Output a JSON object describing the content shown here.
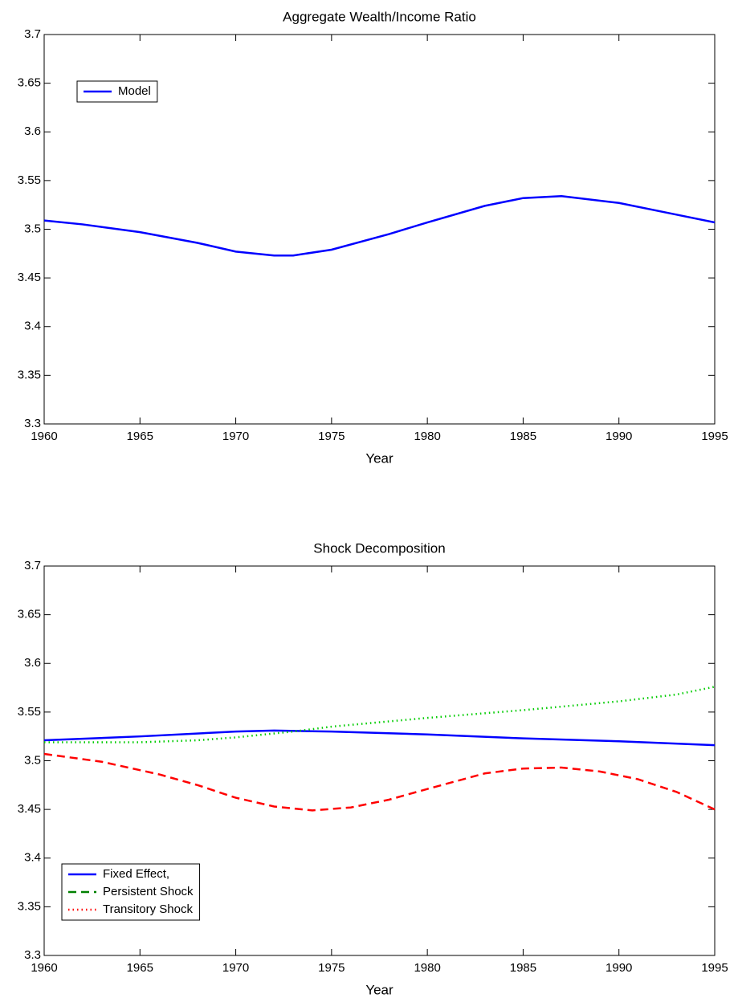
{
  "chart_data": [
    {
      "type": "line",
      "title": "Aggregate Wealth/Income Ratio",
      "x_label": "Year",
      "xlim": [
        1960,
        1995
      ],
      "xticks": [
        1960,
        1965,
        1970,
        1975,
        1980,
        1985,
        1990,
        1995
      ],
      "ylim": [
        3.3,
        3.7
      ],
      "yticks": [
        3.3,
        3.35,
        3.4,
        3.45,
        3.5,
        3.55,
        3.6,
        3.65,
        3.7
      ],
      "legend": "upper left",
      "series": [
        {
          "name": "Model",
          "color": "#0000ff",
          "dash": "solid",
          "legend_color": "#0000ff",
          "legend_dash": "solid",
          "x": [
            1960,
            1962,
            1965,
            1968,
            1970,
            1972,
            1973,
            1975,
            1978,
            1980,
            1983,
            1985,
            1987,
            1990,
            1993,
            1995
          ],
          "values": [
            3.509,
            3.505,
            3.497,
            3.486,
            3.477,
            3.473,
            3.473,
            3.479,
            3.495,
            3.507,
            3.524,
            3.532,
            3.534,
            3.527,
            3.515,
            3.507
          ]
        }
      ]
    },
    {
      "type": "line",
      "title": "Shock Decomposition",
      "x_label": "Year",
      "xlim": [
        1960,
        1995
      ],
      "xticks": [
        1960,
        1965,
        1970,
        1975,
        1980,
        1985,
        1990,
        1995
      ],
      "ylim": [
        3.3,
        3.7
      ],
      "yticks": [
        3.3,
        3.35,
        3.4,
        3.45,
        3.5,
        3.55,
        3.6,
        3.65,
        3.7
      ],
      "legend": "lower left",
      "series": [
        {
          "name": "Fixed Effect,",
          "color": "#0000ff",
          "dash": "solid",
          "legend_color": "#0000ff",
          "legend_dash": "solid",
          "x": [
            1960,
            1965,
            1970,
            1972,
            1975,
            1980,
            1985,
            1990,
            1995
          ],
          "values": [
            3.521,
            3.525,
            3.53,
            3.531,
            3.53,
            3.527,
            3.523,
            3.52,
            3.516
          ]
        },
        {
          "name": "Persistent Shock",
          "color": "#ff0000",
          "dash": "dashed",
          "legend_color": "#008000",
          "legend_dash": "dashed",
          "x": [
            1960,
            1963,
            1966,
            1968,
            1970,
            1972,
            1974,
            1976,
            1978,
            1980,
            1983,
            1985,
            1987,
            1989,
            1991,
            1993,
            1995
          ],
          "values": [
            3.507,
            3.499,
            3.486,
            3.475,
            3.462,
            3.453,
            3.449,
            3.452,
            3.46,
            3.471,
            3.487,
            3.492,
            3.493,
            3.489,
            3.481,
            3.468,
            3.45
          ]
        },
        {
          "name": "Transitory Shock",
          "color": "#00cc00",
          "dash": "dotted",
          "legend_color": "#ff0000",
          "legend_dash": "dotted",
          "x": [
            1960,
            1965,
            1968,
            1970,
            1973,
            1975,
            1980,
            1985,
            1990,
            1993,
            1995
          ],
          "values": [
            3.519,
            3.519,
            3.521,
            3.524,
            3.53,
            3.535,
            3.544,
            3.552,
            3.561,
            3.568,
            3.576
          ]
        }
      ]
    }
  ]
}
